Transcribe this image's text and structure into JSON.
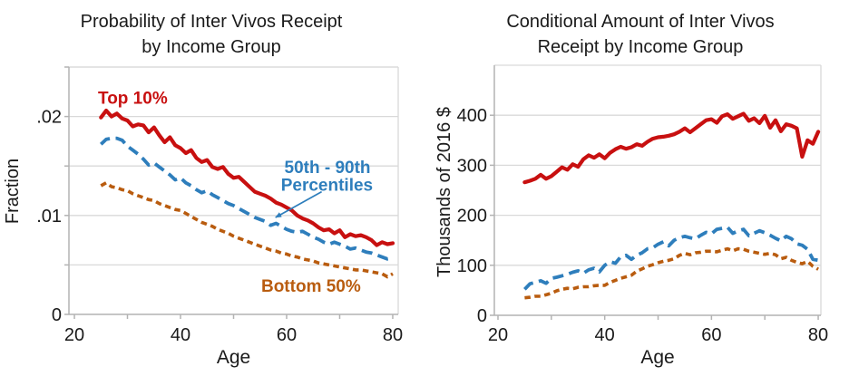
{
  "figure": {
    "background": "#ffffff",
    "colors": {
      "red": "#c81010",
      "blue": "#2e7ebc",
      "orange": "#b95c0f",
      "grid": "#d9d9d9",
      "axis": "#b3b3b3",
      "text": "#1a1a1a"
    }
  },
  "chart_data": [
    {
      "type": "line",
      "title_lines": [
        "Probability of Inter Vivos Receipt",
        "by Income Group"
      ],
      "xlabel": "Age",
      "ylabel": "Fraction",
      "xlim": [
        18.97,
        81.03
      ],
      "ylim": [
        0,
        0.025
      ],
      "grid": true,
      "legend_position": "inline-annotations",
      "xticks": [
        20,
        30,
        40,
        50,
        60,
        70,
        80
      ],
      "xtick_labels": [
        {
          "v": 20,
          "label": "20"
        },
        {
          "v": 40,
          "label": "40"
        },
        {
          "v": 60,
          "label": "60"
        },
        {
          "v": 80,
          "label": "80"
        }
      ],
      "yticks": [
        0,
        0.005,
        0.01,
        0.015,
        0.02,
        0.025
      ],
      "ytick_labels": [
        {
          "v": 0,
          "label": "0"
        },
        {
          "v": 0.01,
          "label": ".01"
        },
        {
          "v": 0.02,
          "label": ".02"
        }
      ],
      "x_start": 25,
      "x_step": 1,
      "series": [
        {
          "name": "Bottom 50%",
          "color": "#b95c0f",
          "dash": "short",
          "values": [
            0.013,
            0.0133,
            0.0129,
            0.0128,
            0.0126,
            0.0125,
            0.0122,
            0.012,
            0.0118,
            0.0116,
            0.0115,
            0.0112,
            0.011,
            0.0108,
            0.0106,
            0.0105,
            0.0102,
            0.0099,
            0.0096,
            0.0093,
            0.0091,
            0.0089,
            0.0086,
            0.0084,
            0.0082,
            0.0079,
            0.0077,
            0.0075,
            0.0073,
            0.0071,
            0.0069,
            0.0067,
            0.0065,
            0.0064,
            0.0062,
            0.0061,
            0.0059,
            0.0058,
            0.0056,
            0.0055,
            0.0054,
            0.0052,
            0.0051,
            0.005,
            0.0049,
            0.0048,
            0.0047,
            0.0046,
            0.0045,
            0.0045,
            0.0044,
            0.0043,
            0.0042,
            0.0041,
            0.0038,
            0.0041
          ]
        },
        {
          "name": "50th - 90th Percentiles",
          "color": "#2e7ebc",
          "dash": "long",
          "values": [
            0.0172,
            0.0177,
            0.0178,
            0.0178,
            0.0176,
            0.017,
            0.0166,
            0.0162,
            0.0157,
            0.0151,
            0.0153,
            0.0149,
            0.0145,
            0.0141,
            0.0136,
            0.0138,
            0.0133,
            0.013,
            0.0126,
            0.0123,
            0.0125,
            0.0121,
            0.0118,
            0.0115,
            0.0112,
            0.011,
            0.0107,
            0.0104,
            0.0101,
            0.0098,
            0.0096,
            0.0094,
            0.009,
            0.0092,
            0.0089,
            0.0086,
            0.0084,
            0.0083,
            0.0084,
            0.0081,
            0.0078,
            0.0076,
            0.0073,
            0.0071,
            0.0073,
            0.0071,
            0.0069,
            0.0066,
            0.0067,
            0.0065,
            0.0063,
            0.0062,
            0.006,
            0.0058,
            0.0056,
            0.0057
          ]
        },
        {
          "name": "Top 10%",
          "color": "#c81010",
          "dash": "solid",
          "values": [
            0.0199,
            0.0206,
            0.02,
            0.0203,
            0.0198,
            0.0196,
            0.019,
            0.0192,
            0.0191,
            0.0184,
            0.0189,
            0.0181,
            0.0174,
            0.0179,
            0.0171,
            0.0168,
            0.0163,
            0.0166,
            0.0158,
            0.0154,
            0.0156,
            0.0149,
            0.0147,
            0.0149,
            0.0142,
            0.0138,
            0.0139,
            0.0134,
            0.0129,
            0.0124,
            0.0122,
            0.012,
            0.0117,
            0.0113,
            0.0111,
            0.0108,
            0.0105,
            0.01,
            0.0097,
            0.0095,
            0.0092,
            0.0088,
            0.0085,
            0.0086,
            0.0082,
            0.0085,
            0.0078,
            0.0081,
            0.0079,
            0.008,
            0.0078,
            0.0075,
            0.007,
            0.0073,
            0.0071,
            0.0072
          ]
        }
      ],
      "annotations": [
        {
          "text": "Top 10%",
          "x": 31,
          "y": 0.0213,
          "color": "#c81010"
        },
        {
          "text": "50th - 90th",
          "x": 67.7,
          "y": 0.0143,
          "color": "#2e7ebc"
        },
        {
          "text": "Percentiles",
          "x": 67.6,
          "y": 0.0125,
          "color": "#2e7ebc"
        },
        {
          "text": "Bottom 50%",
          "x": 64.6,
          "y": 0.0023,
          "color": "#b95c0f"
        }
      ],
      "arrow": {
        "from": [
          66.6,
          0.0124
        ],
        "to": [
          57.9,
          0.0098
        ],
        "color": "#2e7ebc"
      }
    },
    {
      "type": "line",
      "title_lines": [
        "Conditional Amount of Inter Vivos",
        "Receipt by Income Group"
      ],
      "xlabel": "Age",
      "ylabel": "Thousands of 2016 $",
      "xlim": [
        19.32,
        80.5
      ],
      "ylim": [
        0,
        500
      ],
      "grid": true,
      "legend_position": "none",
      "xticks": [
        20,
        30,
        40,
        50,
        60,
        70,
        80
      ],
      "xtick_labels": [
        {
          "v": 20,
          "label": "20"
        },
        {
          "v": 40,
          "label": "40"
        },
        {
          "v": 60,
          "label": "60"
        },
        {
          "v": 80,
          "label": "80"
        }
      ],
      "yticks": [
        0,
        100,
        200,
        300,
        400
      ],
      "ytick_labels": [
        {
          "v": 0,
          "label": "0"
        },
        {
          "v": 100,
          "label": "100"
        },
        {
          "v": 200,
          "label": "200"
        },
        {
          "v": 300,
          "label": "300"
        },
        {
          "v": 400,
          "label": "400"
        }
      ],
      "x_start": 25,
      "x_step": 1,
      "series": [
        {
          "name": "Bottom 50%",
          "color": "#b95c0f",
          "dash": "short",
          "values": [
            35,
            36,
            38,
            38,
            41,
            44,
            49,
            52,
            54,
            53,
            56,
            57,
            57,
            59,
            60,
            60,
            66,
            70,
            74,
            77,
            80,
            88,
            93,
            98,
            101,
            105,
            108,
            110,
            113,
            120,
            124,
            121,
            125,
            126,
            128,
            128,
            127,
            130,
            133,
            129,
            133,
            132,
            128,
            126,
            124,
            122,
            124,
            121,
            113,
            116,
            110,
            106,
            103,
            108,
            98,
            92
          ]
        },
        {
          "name": "50th - 90th Percentiles",
          "color": "#2e7ebc",
          "dash": "long",
          "values": [
            52,
            63,
            66,
            69,
            64,
            74,
            76,
            79,
            82,
            86,
            89,
            84,
            91,
            94,
            87,
            100,
            107,
            104,
            117,
            120,
            112,
            120,
            125,
            133,
            135,
            142,
            147,
            139,
            150,
            155,
            158,
            155,
            153,
            160,
            166,
            163,
            172,
            174,
            176,
            164,
            169,
            172,
            159,
            164,
            169,
            165,
            160,
            154,
            149,
            158,
            153,
            143,
            140,
            132,
            112,
            110
          ]
        },
        {
          "name": "Top 10%",
          "color": "#c81010",
          "dash": "solid",
          "values": [
            266,
            269,
            273,
            281,
            273,
            278,
            287,
            296,
            291,
            302,
            297,
            312,
            320,
            315,
            322,
            314,
            325,
            332,
            337,
            333,
            336,
            342,
            339,
            347,
            353,
            356,
            357,
            359,
            362,
            367,
            374,
            366,
            374,
            382,
            390,
            392,
            385,
            398,
            402,
            393,
            398,
            403,
            389,
            394,
            384,
            399,
            375,
            390,
            368,
            382,
            379,
            374,
            317,
            350,
            343,
            367
          ]
        }
      ],
      "annotations": []
    }
  ]
}
